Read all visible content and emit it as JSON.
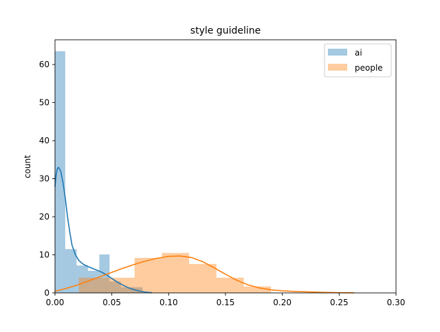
{
  "chart_data": {
    "type": "bar",
    "title": "style guideline",
    "xlabel": "",
    "ylabel": "count",
    "xlim": [
      0.0,
      0.3
    ],
    "ylim": [
      0,
      66.5
    ],
    "xticks": [
      0.0,
      0.05,
      0.1,
      0.15,
      0.2,
      0.25,
      0.3
    ],
    "xtick_labels": [
      "0.00",
      "0.05",
      "0.10",
      "0.15",
      "0.20",
      "0.25",
      "0.30"
    ],
    "yticks": [
      0,
      10,
      20,
      30,
      40,
      50,
      60
    ],
    "ytick_labels": [
      "0",
      "10",
      "20",
      "30",
      "40",
      "50",
      "60"
    ],
    "grid": false,
    "legend_position": "top-right",
    "series": [
      {
        "name": "ai",
        "color": "#1f77b4",
        "bar_alpha": 0.4,
        "bins": [
          {
            "x0": 0.0,
            "x1": 0.009,
            "count": 63.5
          },
          {
            "x0": 0.009,
            "x1": 0.019,
            "count": 11.5
          },
          {
            "x0": 0.019,
            "x1": 0.029,
            "count": 7.2
          },
          {
            "x0": 0.029,
            "x1": 0.039,
            "count": 5.8
          },
          {
            "x0": 0.039,
            "x1": 0.048,
            "count": 10.1
          },
          {
            "x0": 0.048,
            "x1": 0.058,
            "count": 3.0
          },
          {
            "x0": 0.058,
            "x1": 0.068,
            "count": 1.5
          },
          {
            "x0": 0.068,
            "x1": 0.077,
            "count": 1.5
          }
        ],
        "kde": [
          [
            0.0,
            28.0
          ],
          [
            0.001,
            31.0
          ],
          [
            0.002,
            32.6
          ],
          [
            0.003,
            33.0
          ],
          [
            0.005,
            32.0
          ],
          [
            0.007,
            29.0
          ],
          [
            0.009,
            25.0
          ],
          [
            0.011,
            20.0
          ],
          [
            0.013,
            16.0
          ],
          [
            0.015,
            12.5
          ],
          [
            0.018,
            10.0
          ],
          [
            0.021,
            8.5
          ],
          [
            0.025,
            7.5
          ],
          [
            0.03,
            6.8
          ],
          [
            0.035,
            6.2
          ],
          [
            0.04,
            5.6
          ],
          [
            0.045,
            4.8
          ],
          [
            0.05,
            3.8
          ],
          [
            0.055,
            2.8
          ],
          [
            0.06,
            2.0
          ],
          [
            0.065,
            1.3
          ],
          [
            0.07,
            0.8
          ],
          [
            0.075,
            0.45
          ],
          [
            0.08,
            0.2
          ],
          [
            0.085,
            0.05
          ]
        ]
      },
      {
        "name": "people",
        "color": "#ff7f0e",
        "bar_alpha": 0.4,
        "bins": [
          {
            "x0": 0.021,
            "x1": 0.045,
            "count": 4.0
          },
          {
            "x0": 0.045,
            "x1": 0.07,
            "count": 4.0
          },
          {
            "x0": 0.07,
            "x1": 0.094,
            "count": 9.2
          },
          {
            "x0": 0.094,
            "x1": 0.118,
            "count": 10.5
          },
          {
            "x0": 0.118,
            "x1": 0.142,
            "count": 7.6
          },
          {
            "x0": 0.142,
            "x1": 0.166,
            "count": 4.0
          },
          {
            "x0": 0.166,
            "x1": 0.19,
            "count": 1.7
          }
        ],
        "kde": [
          [
            0.0,
            0.4
          ],
          [
            0.01,
            1.2
          ],
          [
            0.02,
            2.1
          ],
          [
            0.03,
            3.2
          ],
          [
            0.04,
            4.3
          ],
          [
            0.05,
            5.4
          ],
          [
            0.06,
            6.5
          ],
          [
            0.07,
            7.5
          ],
          [
            0.08,
            8.4
          ],
          [
            0.09,
            9.1
          ],
          [
            0.1,
            9.6
          ],
          [
            0.11,
            9.7
          ],
          [
            0.12,
            9.3
          ],
          [
            0.13,
            8.2
          ],
          [
            0.14,
            6.6
          ],
          [
            0.15,
            4.9
          ],
          [
            0.16,
            3.3
          ],
          [
            0.17,
            2.1
          ],
          [
            0.18,
            1.3
          ],
          [
            0.19,
            0.8
          ],
          [
            0.2,
            0.55
          ],
          [
            0.21,
            0.4
          ],
          [
            0.22,
            0.3
          ],
          [
            0.23,
            0.2
          ],
          [
            0.24,
            0.12
          ],
          [
            0.25,
            0.06
          ],
          [
            0.263,
            0.02
          ]
        ]
      }
    ]
  }
}
